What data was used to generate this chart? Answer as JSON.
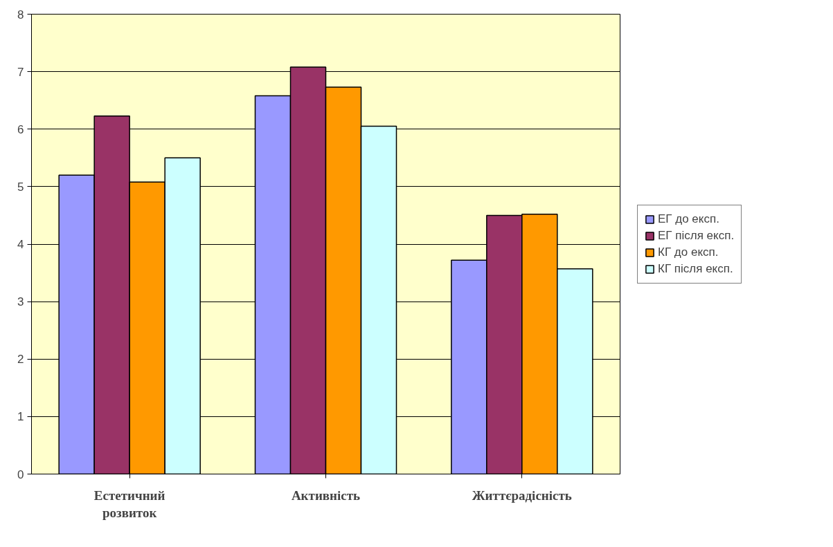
{
  "chart_data": {
    "type": "bar",
    "categories": [
      "Естетичний розвиток",
      "Активність",
      "Життєрадісність"
    ],
    "series": [
      {
        "name": "ЕГ до експ.",
        "color": "#9999ff",
        "values": [
          5.2,
          6.58,
          3.72
        ]
      },
      {
        "name": "ЕГ після експ.",
        "color": "#993366",
        "values": [
          6.23,
          7.08,
          4.5
        ]
      },
      {
        "name": "КГ до експ.",
        "color": "#ff9900",
        "values": [
          5.08,
          6.73,
          4.52
        ]
      },
      {
        "name": "КГ після експ.",
        "color": "#ccffff",
        "values": [
          5.5,
          6.05,
          3.57
        ]
      }
    ],
    "ylim": [
      0,
      8
    ],
    "yticks": [
      0,
      1,
      2,
      3,
      4,
      5,
      6,
      7,
      8
    ],
    "grid": "y",
    "legend": "right"
  }
}
